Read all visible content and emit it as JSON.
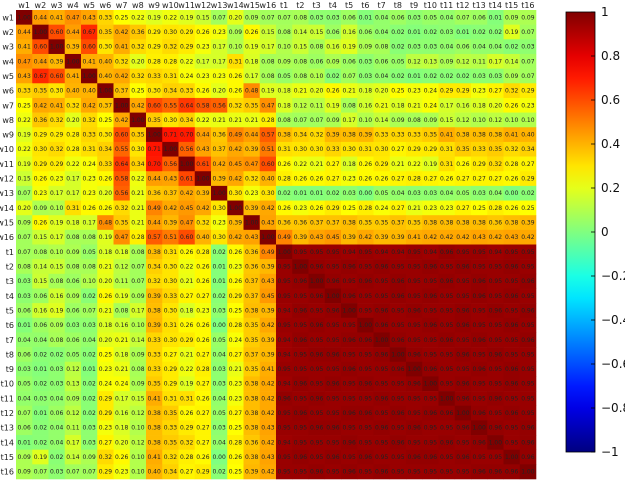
{
  "chart_data": {
    "type": "heatmap",
    "title": "",
    "xlabel": "",
    "ylabel": "",
    "labels": [
      "w1",
      "w2",
      "w3",
      "w4",
      "w5",
      "w6",
      "w7",
      "w8",
      "w9",
      "w10",
      "w11",
      "w12",
      "w13",
      "w14",
      "w15",
      "w16",
      "t1",
      "t2",
      "t3",
      "t4",
      "t5",
      "t6",
      "t7",
      "t8",
      "t9",
      "t10",
      "t11",
      "t12",
      "t13",
      "t14",
      "t15",
      "t16"
    ],
    "colorbar": {
      "range": [
        -1,
        1
      ],
      "ticks": [
        1,
        0.8,
        0.6,
        0.4,
        0.2,
        0,
        -0.2,
        -0.4,
        -0.6,
        -0.8,
        -1
      ],
      "tick_labels": [
        "1",
        "0.8",
        "0.6",
        "0.4",
        "0.2",
        "0",
        "−0.2",
        "−0.4",
        "−0.6",
        "−0.8",
        "−1"
      ]
    },
    "colormap": "jet",
    "cells_annotated": true,
    "value_precision": 2,
    "note_blocks": {
      "ww_diag": 1.0,
      "ww_offdiag_range": [
        0.05,
        0.7
      ],
      "tw_range": [
        -0.5,
        0.5
      ],
      "tt_range": [
        0.85,
        1.0
      ]
    },
    "values": [
      [
        1.0,
        0.44,
        0.41,
        0.47,
        0.43,
        0.33,
        0.25,
        0.22,
        0.19,
        0.22,
        0.19,
        0.15,
        0.07,
        0.2,
        0.09,
        0.07,
        0.07,
        0.08,
        0.03,
        0.03,
        0.06,
        0.01,
        0.04,
        0.06,
        0.03,
        0.05,
        0.04,
        0.07,
        0.06,
        0.01,
        0.09,
        0.09
      ],
      [
        0.44,
        1.0,
        0.6,
        0.44,
        0.67,
        0.35,
        0.42,
        0.36,
        0.29,
        0.3,
        0.29,
        0.26,
        0.23,
        0.09,
        0.26,
        0.15,
        0.08,
        0.14,
        0.15,
        0.06,
        0.16,
        0.06,
        0.04,
        0.02,
        0.01,
        0.02,
        0.03,
        0.01,
        0.02,
        0.02,
        0.19,
        0.07
      ],
      [
        0.41,
        0.6,
        1.0,
        0.39,
        0.6,
        0.3,
        0.41,
        0.32,
        0.29,
        0.32,
        0.29,
        0.23,
        0.17,
        0.1,
        0.19,
        0.17,
        0.1,
        0.15,
        0.08,
        0.16,
        0.19,
        0.09,
        0.08,
        0.02,
        0.03,
        0.03,
        0.04,
        0.06,
        0.04,
        0.04,
        0.02,
        0.03
      ],
      [
        0.47,
        0.44,
        0.39,
        1.0,
        0.41,
        0.4,
        0.32,
        0.2,
        0.28,
        0.28,
        0.22,
        0.17,
        0.17,
        0.31,
        0.18,
        0.08,
        0.09,
        0.08,
        0.06,
        0.09,
        0.06,
        0.03,
        0.06,
        0.05,
        0.12,
        0.13,
        0.09,
        0.12,
        0.11,
        0.17,
        0.14,
        0.07
      ],
      [
        0.43,
        0.67,
        0.6,
        0.41,
        1.0,
        0.4,
        0.42,
        0.32,
        0.33,
        0.31,
        0.24,
        0.23,
        0.23,
        0.26,
        0.17,
        0.08,
        0.05,
        0.08,
        0.1,
        0.02,
        0.07,
        0.03,
        0.04,
        0.02,
        0.01,
        0.02,
        0.02,
        0.02,
        0.03,
        0.03,
        0.09,
        0.07
      ],
      [
        0.33,
        0.35,
        0.3,
        0.4,
        0.4,
        1.0,
        0.37,
        0.25,
        0.3,
        0.34,
        0.33,
        0.26,
        0.2,
        0.26,
        0.48,
        0.19,
        0.18,
        0.21,
        0.2,
        0.26,
        0.21,
        0.18,
        0.2,
        0.25,
        0.23,
        0.24,
        0.29,
        0.29,
        0.23,
        0.27,
        0.32,
        0.29
      ],
      [
        0.25,
        0.42,
        0.41,
        0.32,
        0.42,
        0.37,
        1.0,
        0.42,
        0.6,
        0.55,
        0.64,
        0.58,
        0.56,
        0.32,
        0.35,
        0.47,
        0.18,
        0.12,
        0.11,
        0.19,
        0.08,
        0.16,
        0.21,
        0.18,
        0.21,
        0.24,
        0.17,
        0.16,
        0.18,
        0.2,
        0.26,
        0.23
      ],
      [
        0.22,
        0.36,
        0.32,
        0.2,
        0.32,
        0.25,
        0.42,
        1.0,
        0.35,
        0.3,
        0.34,
        0.22,
        0.21,
        0.21,
        0.21,
        0.28,
        0.08,
        0.07,
        0.07,
        0.09,
        0.17,
        0.1,
        0.14,
        0.09,
        0.08,
        0.09,
        0.15,
        0.12,
        0.1,
        0.12,
        0.1,
        0.1
      ],
      [
        0.19,
        0.29,
        0.29,
        0.28,
        0.33,
        0.3,
        0.6,
        0.35,
        1.0,
        0.71,
        0.7,
        0.44,
        0.36,
        0.49,
        0.44,
        0.57,
        0.38,
        0.34,
        0.32,
        0.39,
        0.38,
        0.39,
        0.33,
        0.33,
        0.33,
        0.35,
        0.41,
        0.38,
        0.38,
        0.38,
        0.41,
        0.4
      ],
      [
        0.22,
        0.3,
        0.32,
        0.28,
        0.31,
        0.34,
        0.55,
        0.3,
        0.71,
        1.0,
        0.56,
        0.43,
        0.37,
        0.42,
        0.39,
        0.51,
        0.31,
        0.3,
        0.3,
        0.33,
        0.3,
        0.31,
        0.3,
        0.27,
        0.29,
        0.29,
        0.31,
        0.35,
        0.33,
        0.35,
        0.32,
        0.34
      ],
      [
        0.19,
        0.29,
        0.29,
        0.22,
        0.24,
        0.33,
        0.64,
        0.34,
        0.7,
        0.56,
        1.0,
        0.61,
        0.42,
        0.45,
        0.47,
        0.6,
        0.26,
        0.22,
        0.21,
        0.27,
        0.18,
        0.26,
        0.29,
        0.21,
        0.22,
        0.19,
        0.31,
        0.26,
        0.29,
        0.32,
        0.28,
        0.27
      ],
      [
        0.15,
        0.26,
        0.23,
        0.17,
        0.23,
        0.26,
        0.58,
        0.22,
        0.44,
        0.43,
        0.61,
        1.0,
        0.39,
        0.42,
        0.32,
        0.4,
        0.28,
        0.26,
        0.26,
        0.27,
        0.23,
        0.26,
        0.26,
        0.27,
        0.28,
        0.27,
        0.26,
        0.27,
        0.27,
        0.27,
        0.26,
        0.29
      ],
      [
        0.07,
        0.23,
        0.17,
        0.17,
        0.23,
        0.2,
        0.56,
        0.21,
        0.36,
        0.37,
        0.42,
        0.39,
        1.0,
        0.3,
        0.23,
        0.3,
        0.02,
        0.01,
        0.01,
        0.02,
        0.03,
        0.0,
        0.05,
        0.04,
        0.03,
        0.03,
        0.04,
        0.05,
        0.03,
        0.04,
        0.0,
        0.02
      ],
      [
        0.2,
        0.09,
        0.1,
        0.31,
        0.26,
        0.26,
        0.32,
        0.21,
        0.49,
        0.42,
        0.45,
        0.42,
        0.3,
        1.0,
        0.39,
        0.42,
        0.26,
        0.23,
        0.26,
        0.29,
        0.25,
        0.28,
        0.24,
        0.27,
        0.21,
        0.23,
        0.23,
        0.27,
        0.25,
        0.28,
        0.26,
        0.25
      ],
      [
        0.09,
        0.26,
        0.19,
        0.18,
        0.17,
        0.48,
        0.35,
        0.21,
        0.44,
        0.39,
        0.47,
        0.32,
        0.23,
        0.39,
        1.0,
        0.43,
        0.36,
        0.36,
        0.37,
        0.37,
        0.38,
        0.35,
        0.35,
        0.37,
        0.35,
        0.38,
        0.38,
        0.38,
        0.38,
        0.36,
        0.38,
        0.39
      ],
      [
        0.07,
        0.15,
        0.17,
        0.08,
        0.08,
        0.19,
        0.47,
        0.28,
        0.57,
        0.51,
        0.6,
        0.4,
        0.3,
        0.42,
        0.43,
        1.0,
        0.49,
        0.39,
        0.43,
        0.45,
        0.39,
        0.42,
        0.39,
        0.39,
        0.41,
        0.42,
        0.42,
        0.42,
        0.43,
        0.42,
        0.43,
        0.42
      ],
      [
        0.07,
        0.08,
        0.1,
        0.09,
        0.05,
        0.18,
        0.18,
        0.08,
        0.38,
        0.31,
        0.26,
        0.28,
        0.02,
        0.26,
        0.36,
        0.49,
        1.0,
        0.95,
        0.95,
        0.95,
        0.94,
        0.95,
        0.94,
        0.94,
        0.95,
        0.94,
        0.96,
        0.95,
        0.95,
        0.94,
        0.95,
        0.95
      ],
      [
        0.08,
        0.14,
        0.15,
        0.08,
        0.08,
        0.21,
        0.12,
        0.07,
        0.34,
        0.3,
        0.22,
        0.26,
        0.01,
        0.23,
        0.36,
        0.39,
        0.95,
        1.0,
        0.96,
        0.95,
        0.96,
        0.95,
        0.96,
        0.95,
        0.95,
        0.96,
        0.95,
        0.96,
        0.95,
        0.95,
        0.96,
        0.95
      ],
      [
        0.03,
        0.15,
        0.08,
        0.06,
        0.1,
        0.2,
        0.11,
        0.07,
        0.32,
        0.3,
        0.21,
        0.26,
        0.01,
        0.26,
        0.37,
        0.43,
        0.95,
        0.96,
        1.0,
        0.96,
        0.95,
        0.96,
        0.95,
        0.96,
        0.95,
        0.95,
        0.96,
        0.95,
        0.96,
        0.95,
        0.95,
        0.96
      ],
      [
        0.03,
        0.06,
        0.16,
        0.09,
        0.02,
        0.26,
        0.19,
        0.09,
        0.39,
        0.33,
        0.27,
        0.27,
        0.02,
        0.29,
        0.37,
        0.45,
        0.95,
        0.95,
        0.96,
        1.0,
        0.96,
        0.95,
        0.95,
        0.96,
        0.95,
        0.96,
        0.95,
        0.95,
        0.96,
        0.95,
        0.96,
        0.95
      ],
      [
        0.06,
        0.16,
        0.19,
        0.06,
        0.07,
        0.21,
        0.08,
        0.17,
        0.38,
        0.3,
        0.18,
        0.23,
        0.03,
        0.25,
        0.38,
        0.39,
        0.94,
        0.96,
        0.95,
        0.96,
        1.0,
        0.95,
        0.96,
        0.95,
        0.96,
        0.95,
        0.95,
        0.96,
        0.95,
        0.96,
        0.95,
        0.96
      ],
      [
        0.01,
        0.06,
        0.09,
        0.03,
        0.03,
        0.18,
        0.16,
        0.1,
        0.39,
        0.31,
        0.26,
        0.26,
        0.0,
        0.28,
        0.35,
        0.42,
        0.95,
        0.95,
        0.96,
        0.95,
        0.95,
        1.0,
        0.96,
        0.95,
        0.95,
        0.96,
        0.95,
        0.96,
        0.95,
        0.95,
        0.96,
        0.95
      ],
      [
        0.04,
        0.04,
        0.08,
        0.06,
        0.04,
        0.2,
        0.21,
        0.14,
        0.33,
        0.3,
        0.29,
        0.26,
        0.05,
        0.24,
        0.35,
        0.39,
        0.94,
        0.96,
        0.95,
        0.95,
        0.96,
        0.96,
        1.0,
        0.96,
        0.95,
        0.95,
        0.96,
        0.95,
        0.96,
        0.95,
        0.95,
        0.96
      ],
      [
        0.06,
        0.02,
        0.02,
        0.05,
        0.02,
        0.25,
        0.18,
        0.09,
        0.33,
        0.27,
        0.21,
        0.27,
        0.04,
        0.27,
        0.37,
        0.39,
        0.94,
        0.95,
        0.96,
        0.96,
        0.95,
        0.95,
        0.96,
        1.0,
        0.96,
        0.95,
        0.95,
        0.96,
        0.95,
        0.96,
        0.95,
        0.95
      ],
      [
        0.03,
        0.01,
        0.03,
        0.12,
        0.01,
        0.23,
        0.21,
        0.08,
        0.33,
        0.29,
        0.22,
        0.28,
        0.03,
        0.21,
        0.35,
        0.41,
        0.95,
        0.95,
        0.95,
        0.95,
        0.96,
        0.95,
        0.95,
        0.96,
        1.0,
        0.96,
        0.95,
        0.95,
        0.96,
        0.95,
        0.96,
        0.95
      ],
      [
        0.05,
        0.02,
        0.03,
        0.13,
        0.02,
        0.24,
        0.24,
        0.09,
        0.35,
        0.29,
        0.19,
        0.27,
        0.03,
        0.23,
        0.38,
        0.42,
        0.94,
        0.96,
        0.95,
        0.96,
        0.95,
        0.96,
        0.95,
        0.95,
        0.96,
        1.0,
        0.95,
        0.96,
        0.95,
        0.95,
        0.96,
        0.95
      ],
      [
        0.04,
        0.03,
        0.04,
        0.09,
        0.02,
        0.29,
        0.17,
        0.15,
        0.41,
        0.31,
        0.31,
        0.26,
        0.04,
        0.23,
        0.38,
        0.42,
        0.96,
        0.95,
        0.96,
        0.95,
        0.95,
        0.95,
        0.96,
        0.95,
        0.95,
        0.95,
        1.0,
        0.96,
        0.95,
        0.96,
        0.95,
        0.95
      ],
      [
        0.07,
        0.01,
        0.06,
        0.12,
        0.02,
        0.29,
        0.16,
        0.12,
        0.38,
        0.35,
        0.26,
        0.27,
        0.05,
        0.27,
        0.38,
        0.42,
        0.95,
        0.96,
        0.95,
        0.95,
        0.96,
        0.96,
        0.95,
        0.96,
        0.95,
        0.96,
        0.96,
        1.0,
        0.96,
        0.95,
        0.96,
        0.95
      ],
      [
        0.06,
        0.02,
        0.04,
        0.11,
        0.03,
        0.23,
        0.18,
        0.1,
        0.38,
        0.33,
        0.29,
        0.27,
        0.03,
        0.25,
        0.38,
        0.43,
        0.95,
        0.95,
        0.96,
        0.96,
        0.95,
        0.95,
        0.96,
        0.95,
        0.96,
        0.95,
        0.95,
        0.96,
        1.0,
        0.96,
        0.95,
        0.96
      ],
      [
        0.01,
        0.02,
        0.04,
        0.17,
        0.03,
        0.27,
        0.2,
        0.12,
        0.38,
        0.35,
        0.32,
        0.27,
        0.04,
        0.28,
        0.36,
        0.42,
        0.94,
        0.95,
        0.95,
        0.95,
        0.96,
        0.95,
        0.95,
        0.96,
        0.95,
        0.95,
        0.96,
        0.95,
        0.96,
        1.0,
        0.95,
        0.96
      ],
      [
        0.09,
        0.19,
        0.02,
        0.14,
        0.09,
        0.32,
        0.26,
        0.1,
        0.41,
        0.32,
        0.28,
        0.26,
        0.0,
        0.26,
        0.38,
        0.43,
        0.95,
        0.96,
        0.95,
        0.96,
        0.95,
        0.96,
        0.95,
        0.95,
        0.96,
        0.96,
        0.95,
        0.96,
        0.95,
        0.95,
        1.0,
        0.96
      ],
      [
        0.09,
        0.07,
        0.03,
        0.07,
        0.07,
        0.29,
        0.23,
        0.1,
        0.4,
        0.34,
        0.27,
        0.29,
        0.02,
        0.25,
        0.39,
        0.42,
        0.95,
        0.95,
        0.96,
        0.95,
        0.96,
        0.95,
        0.96,
        0.95,
        0.95,
        0.95,
        0.95,
        0.95,
        0.96,
        0.96,
        0.96,
        1.0
      ]
    ]
  }
}
